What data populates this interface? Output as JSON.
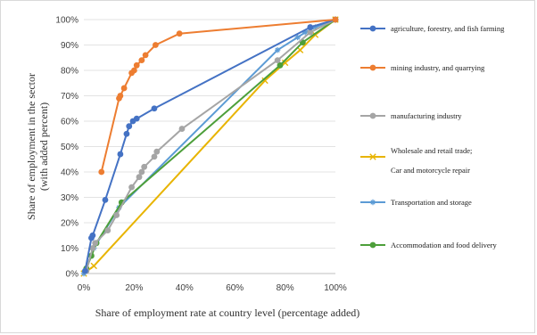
{
  "chart_data": {
    "type": "line",
    "xlabel": "Share of employment rate at country level (percentage added)",
    "ylabel": [
      "Share of employment in the sector",
      "(with added percent)"
    ],
    "xlim": [
      0,
      100
    ],
    "ylim": [
      0,
      100
    ],
    "x_ticks": [
      "0%",
      "20%",
      "40%",
      "60%",
      "80%",
      "100%"
    ],
    "y_ticks": [
      "0%",
      "10%",
      "20%",
      "30%",
      "40%",
      "50%",
      "60%",
      "70%",
      "80%",
      "90%",
      "100%"
    ],
    "grid": "horizontal",
    "legend_position": "right",
    "series": [
      {
        "name": [
          "agriculture, forestry, and fish farming"
        ],
        "color": "#4472c4",
        "marker": "circle",
        "points": [
          [
            0.5,
            1
          ],
          [
            3,
            14
          ],
          [
            3.5,
            15
          ],
          [
            8.5,
            29
          ],
          [
            14.5,
            47
          ],
          [
            17,
            55
          ],
          [
            18,
            58
          ],
          [
            19.5,
            60
          ],
          [
            21,
            61
          ],
          [
            28,
            65
          ],
          [
            90,
            97
          ],
          [
            100,
            100
          ]
        ]
      },
      {
        "name": [
          "mining industry, and quarrying"
        ],
        "color": "#ed7d31",
        "marker": "circle",
        "points": [
          [
            7,
            40
          ],
          [
            14,
            69
          ],
          [
            14.5,
            70
          ],
          [
            16,
            73
          ],
          [
            19,
            79
          ],
          [
            20,
            80
          ],
          [
            21,
            82
          ],
          [
            23,
            84
          ],
          [
            24.5,
            86
          ],
          [
            28.5,
            90
          ],
          [
            38,
            94.5
          ],
          [
            100,
            100
          ]
        ]
      },
      {
        "name": [
          "manufacturing industry"
        ],
        "color": "#a5a5a5",
        "marker": "circle",
        "points": [
          [
            1,
            1
          ],
          [
            3.5,
            10
          ],
          [
            4.5,
            12
          ],
          [
            9.5,
            17
          ],
          [
            13,
            23
          ],
          [
            19,
            34
          ],
          [
            22,
            38
          ],
          [
            23,
            40
          ],
          [
            24,
            42
          ],
          [
            28,
            46
          ],
          [
            29,
            48
          ],
          [
            39,
            57
          ],
          [
            77,
            84
          ],
          [
            90,
            95
          ],
          [
            100,
            100
          ]
        ]
      },
      {
        "name": [
          "Wholesale and retail trade;",
          "Car and motorcycle repair"
        ],
        "color": "#e8b400",
        "marker": "x",
        "points": [
          [
            0,
            0
          ],
          [
            4,
            3
          ],
          [
            72,
            76
          ],
          [
            80,
            83
          ],
          [
            86,
            88
          ],
          [
            92,
            94
          ],
          [
            100,
            100
          ]
        ]
      },
      {
        "name": [
          "Transportation and storage"
        ],
        "color": "#5b9bd5",
        "marker": "star",
        "points": [
          [
            0,
            0
          ],
          [
            4,
            10
          ],
          [
            14,
            26
          ],
          [
            77,
            88
          ],
          [
            85,
            93
          ],
          [
            88,
            95
          ],
          [
            92,
            97
          ],
          [
            100,
            100
          ]
        ]
      },
      {
        "name": [
          "Accommodation and food delivery"
        ],
        "color": "#4d9f3a",
        "marker": "circle",
        "points": [
          [
            1,
            2
          ],
          [
            3,
            7
          ],
          [
            5,
            12
          ],
          [
            15,
            28
          ],
          [
            78,
            82
          ],
          [
            87,
            91
          ],
          [
            100,
            100
          ]
        ]
      }
    ]
  }
}
